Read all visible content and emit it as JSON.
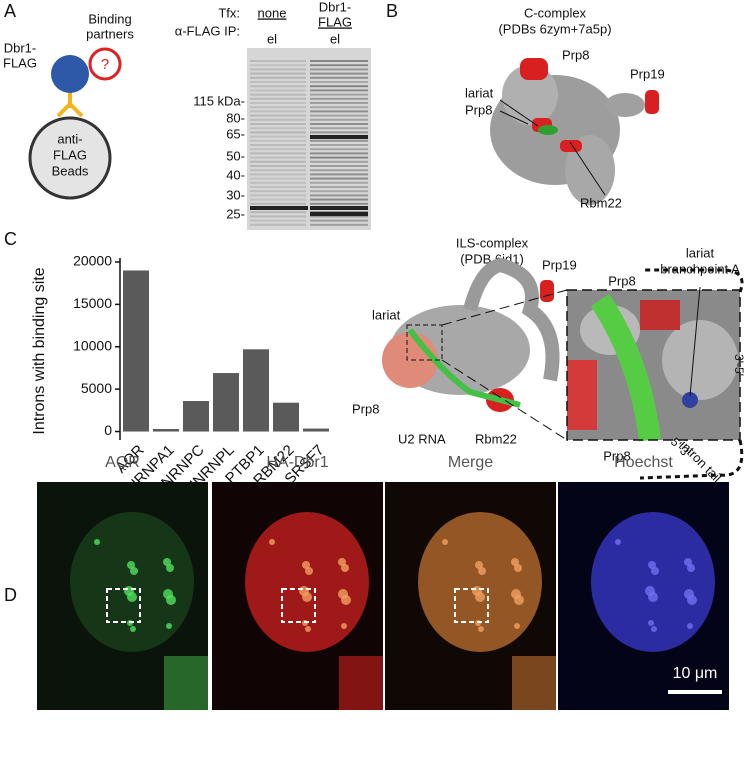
{
  "panel_a": {
    "label": "A",
    "schematic": {
      "partners": [
        "Binding",
        "partners"
      ],
      "unknown": "?",
      "bait": [
        "Dbr1-",
        "FLAG"
      ],
      "beads": [
        "anti-",
        "FLAG",
        "Beads"
      ]
    },
    "gel": {
      "tfx_label": "Tfx:",
      "ip_label": "α-FLAG IP:",
      "lane1_tfx": "none",
      "lane2_tfx": [
        "Dbr1-",
        "FLAG"
      ],
      "lane_ip": [
        "el",
        "el"
      ],
      "markers": [
        "115 kDa-",
        "80-",
        "65-",
        "50-",
        "40-",
        "30-",
        "25-"
      ]
    }
  },
  "panel_b": {
    "label": "B",
    "c_complex": {
      "title": [
        "C-complex",
        "(PDBs 6zym+7a5p)"
      ],
      "labels": [
        "Prp8",
        "Prp19",
        "lariat",
        "Prp8",
        "Rbm22"
      ]
    },
    "ils_complex": {
      "title": [
        "ILS-complex",
        "(PDB 6id1)"
      ],
      "labels": [
        "Prp19",
        "lariat",
        "Prp8",
        "U2 RNA",
        "Rbm22"
      ],
      "zoom_labels": [
        "Prp8",
        "lariat",
        "branchpoint A",
        "Prp8",
        "3'-5'",
        "5'-3'",
        "intron tail"
      ]
    }
  },
  "panel_c": {
    "label": "C"
  },
  "chart_data": {
    "type": "bar",
    "ylabel": "Introns with binding site",
    "categories": [
      "AQR",
      "HNRNPA1",
      "HNRNPC",
      "HNRNPL",
      "PTBP1",
      "RBM22",
      "SRSF7"
    ],
    "values": [
      19000,
      300,
      3600,
      6900,
      9700,
      3400,
      350
    ],
    "color": "#5a5a5a",
    "ylim": [
      -1000,
      20000
    ],
    "yticks": [
      0,
      5000,
      10000,
      15000,
      20000
    ]
  },
  "panel_d": {
    "label": "D",
    "channels": [
      "AQR",
      "HA-Dbr1",
      "Merge",
      "Hoechst"
    ],
    "scale_bar": "10 μm"
  }
}
